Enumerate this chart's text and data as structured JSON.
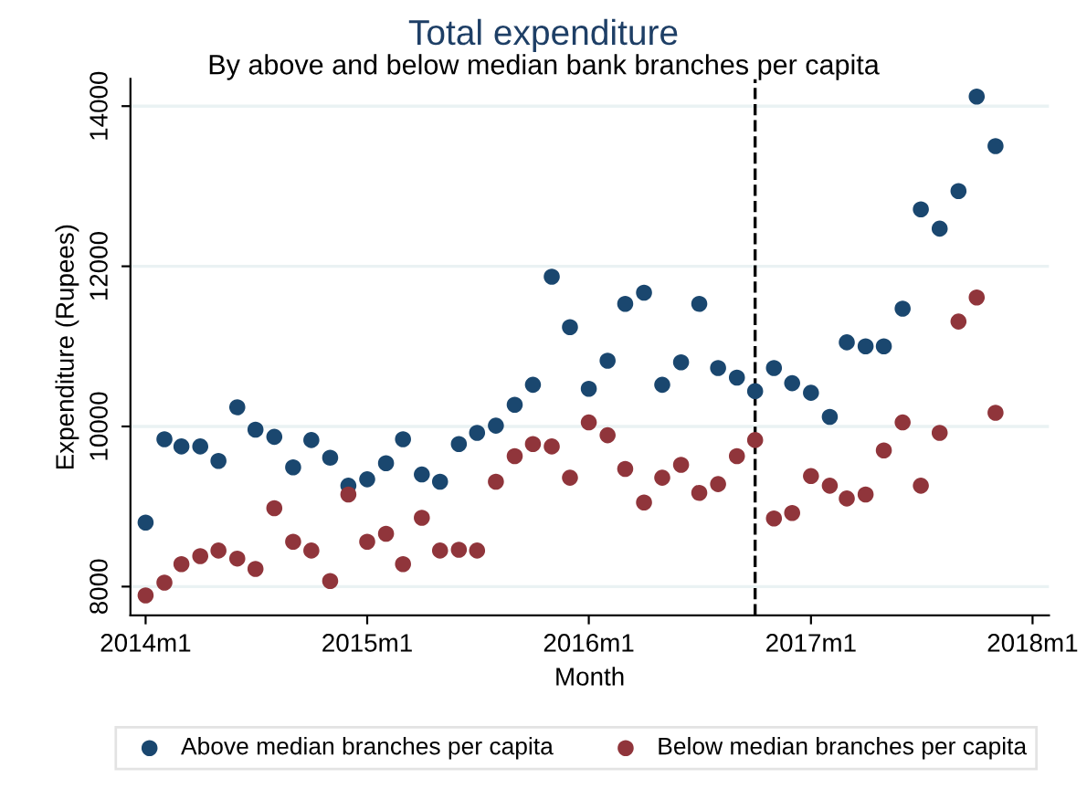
{
  "chart_data": {
    "type": "scatter",
    "title": "Total expenditure",
    "subtitle": "By above and below median bank branches per capita",
    "xlabel": "Month",
    "ylabel": "Expenditure (Rupees)",
    "x": [
      "2014-01",
      "2014-02",
      "2014-03",
      "2014-04",
      "2014-05",
      "2014-06",
      "2014-07",
      "2014-08",
      "2014-09",
      "2014-10",
      "2014-11",
      "2014-12",
      "2015-01",
      "2015-02",
      "2015-03",
      "2015-04",
      "2015-05",
      "2015-06",
      "2015-07",
      "2015-08",
      "2015-09",
      "2015-10",
      "2015-11",
      "2015-12",
      "2016-01",
      "2016-02",
      "2016-03",
      "2016-04",
      "2016-05",
      "2016-06",
      "2016-07",
      "2016-08",
      "2016-09",
      "2016-10",
      "2016-11",
      "2016-12",
      "2017-01",
      "2017-02",
      "2017-03",
      "2017-04",
      "2017-05",
      "2017-06",
      "2017-07",
      "2017-08",
      "2017-09",
      "2017-10",
      "2017-11"
    ],
    "series": [
      {
        "name": "Above median branches per capita",
        "color": "#1a476f",
        "values": [
          8800,
          9840,
          9750,
          9750,
          9570,
          10240,
          9960,
          9870,
          9490,
          9830,
          9610,
          9260,
          9340,
          9540,
          9840,
          9400,
          9310,
          9780,
          9920,
          10010,
          10270,
          10520,
          11870,
          11240,
          10470,
          10820,
          11530,
          11670,
          10520,
          10800,
          11530,
          10730,
          10610,
          10440,
          10730,
          10540,
          10420,
          10120,
          11050,
          11000,
          11000,
          11470,
          12710,
          12470,
          12940,
          14120,
          13500
        ]
      },
      {
        "name": "Below median branches per capita",
        "color": "#90353b",
        "values": [
          7890,
          8050,
          8280,
          8380,
          8450,
          8350,
          8220,
          8980,
          8560,
          8450,
          8070,
          9150,
          8560,
          8660,
          8280,
          8860,
          8450,
          8460,
          8450,
          9310,
          9630,
          9780,
          9750,
          9360,
          10050,
          9890,
          9470,
          9050,
          9360,
          9520,
          9170,
          9280,
          9630,
          9830,
          8850,
          8920,
          9380,
          9260,
          9100,
          9150,
          9700,
          10050,
          9260,
          9920,
          11310,
          11610,
          10170
        ]
      }
    ],
    "xlim": [
      "2013-12-07",
      "2018-01-28"
    ],
    "xticks": [
      {
        "value": "2014-01",
        "label": "2014m1"
      },
      {
        "value": "2015-01",
        "label": "2015m1"
      },
      {
        "value": "2016-01",
        "label": "2016m1"
      },
      {
        "value": "2017-01",
        "label": "2017m1"
      },
      {
        "value": "2018-01",
        "label": "2018m1"
      }
    ],
    "ylim": [
      7640,
      14340
    ],
    "yticks": [
      8000,
      10000,
      12000,
      14000
    ],
    "ref_lines": [
      {
        "axis": "x",
        "value": "2016-10",
        "color": "#000000",
        "line_style": "dashed"
      }
    ],
    "grid": "y",
    "legend": "bottom",
    "marker": "circle"
  }
}
